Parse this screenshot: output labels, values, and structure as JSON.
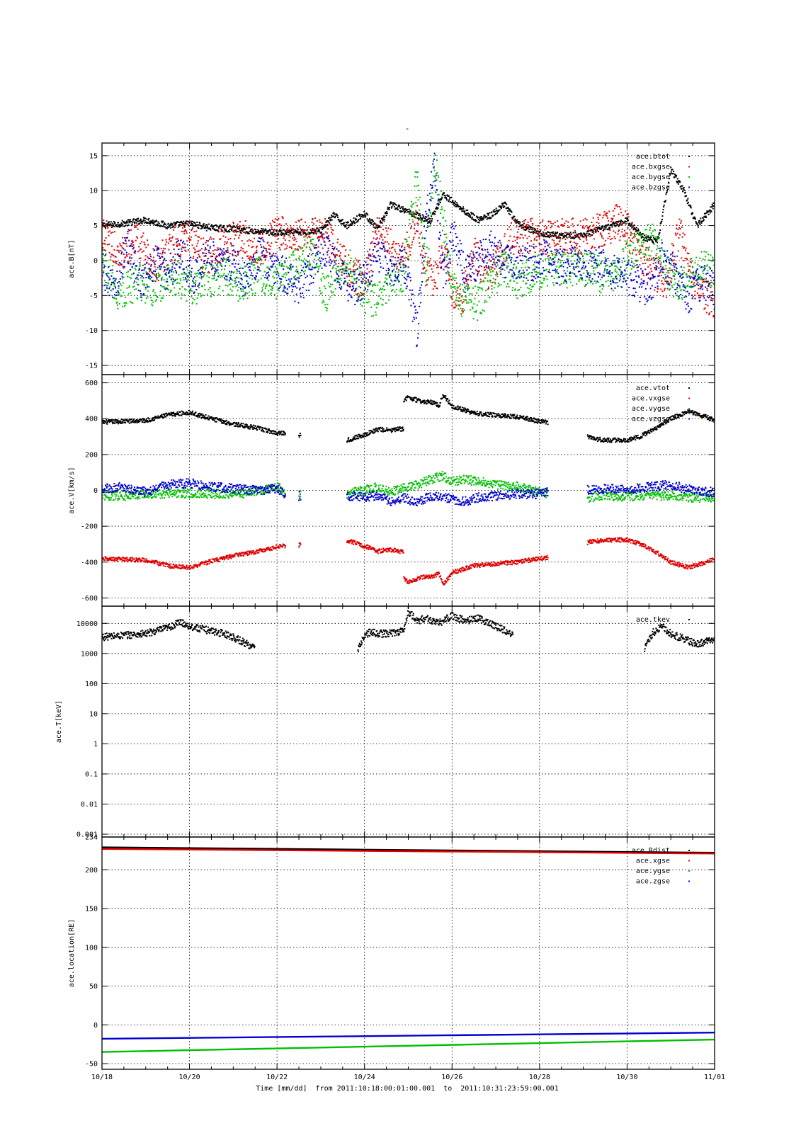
{
  "figure": {
    "title": "-",
    "xlabel": "Time [mm/dd]  from 2011:10:18:00:01:00.001  to  2011:10:31:23:59:00.001",
    "x_ticks": [
      "10/18",
      "10/20",
      "10/22",
      "10/24",
      "10/26",
      "10/28",
      "10/30",
      "11/01"
    ]
  },
  "chart_data": [
    {
      "type": "scatter",
      "ylabel": "ace.B[nT]",
      "xlim": [
        0,
        14
      ],
      "ylim": [
        -15.5,
        16
      ],
      "yscale": "linear",
      "y_ticks": [
        15,
        10,
        5,
        0,
        -5,
        -10,
        -15
      ],
      "y_tick_labels": [
        "15",
        "10",
        "5",
        "0",
        "-5",
        "-10",
        "-15"
      ],
      "grid": true,
      "legend_position": "top-right",
      "series": [
        {
          "name": "ace.btot",
          "color": "#000000",
          "x": [
            0,
            0.5,
            1,
            1.5,
            2,
            2.5,
            3,
            3.5,
            4,
            4.5,
            5,
            5.3,
            5.6,
            6,
            6.3,
            6.6,
            6.9,
            7.2,
            7.5,
            7.8,
            8,
            8.3,
            8.6,
            8.9,
            9.2,
            9.5,
            10,
            10.5,
            11,
            11.5,
            12,
            12.2,
            12.4,
            12.7,
            13,
            13.3,
            13.6,
            14
          ],
          "y": [
            5,
            5.3,
            5.8,
            5,
            5.3,
            4.7,
            4.5,
            4.2,
            4,
            4,
            4.3,
            6.5,
            5,
            6.7,
            4.5,
            8,
            7.2,
            6.5,
            5.6,
            9.5,
            8.5,
            7,
            5.8,
            6.5,
            8,
            5.3,
            3.8,
            3.6,
            3.6,
            4.7,
            5.7,
            4.5,
            3.2,
            2.8,
            13,
            10,
            5,
            8
          ]
        },
        {
          "name": "ace.bxgse",
          "color": "#e00000",
          "x": [
            0,
            0.4,
            0.8,
            1.2,
            1.6,
            2,
            2.4,
            2.8,
            3.2,
            3.6,
            4,
            4.4,
            4.8,
            5.1,
            5.4,
            5.7,
            6,
            6.3,
            6.6,
            6.9,
            7.2,
            7.4,
            7.6,
            7.8,
            8,
            8.2,
            8.5,
            8.8,
            9.1,
            9.4,
            9.8,
            10.2,
            10.6,
            11,
            11.4,
            11.8,
            12,
            12.3,
            12.6,
            12.9,
            13.2,
            13.5,
            13.8,
            14
          ],
          "y": [
            4,
            1,
            3,
            -1,
            2,
            3,
            0.5,
            2.5,
            3.5,
            1.5,
            3.8,
            3.6,
            3.5,
            3.8,
            1,
            -2,
            -3,
            4.5,
            2,
            0,
            6,
            -1,
            -3,
            2,
            -4,
            -6,
            1,
            -2,
            0.5,
            3.2,
            3.5,
            3.2,
            3.6,
            3.3,
            4.5,
            5.5,
            4.5,
            0,
            -1.5,
            -3,
            4,
            -3,
            -5,
            -6
          ]
        },
        {
          "name": "ace.bygse",
          "color": "#00c000",
          "x": [
            0,
            0.4,
            0.8,
            1.2,
            1.6,
            2,
            2.4,
            2.8,
            3.2,
            3.6,
            4,
            4.4,
            4.8,
            5.1,
            5.4,
            5.7,
            6,
            6.3,
            6.6,
            6.9,
            7.2,
            7.4,
            7.6,
            7.8,
            8,
            8.3,
            8.6,
            8.9,
            9.2,
            9.5,
            9.8,
            10.2,
            10.6,
            11,
            11.4,
            11.8,
            12,
            12.3,
            12.6,
            12.9,
            13.2,
            13.5,
            13.8,
            14
          ],
          "y": [
            0,
            -5,
            -3,
            -4,
            -2,
            -4,
            -3,
            -2,
            -3.5,
            -2,
            -3,
            -1,
            2,
            -5,
            -2,
            -1,
            -5,
            -6,
            -3,
            -2,
            12,
            -2,
            14,
            6,
            -4,
            -6,
            -6,
            -3,
            -1,
            -3,
            -2,
            -1,
            -1.5,
            -1,
            -2,
            -2.5,
            1,
            2,
            3,
            -1,
            -4,
            -2,
            -1,
            -2
          ]
        },
        {
          "name": "ace.bzgse",
          "color": "#0000d0",
          "x": [
            0,
            0.3,
            0.6,
            0.9,
            1.2,
            1.5,
            1.8,
            2.1,
            2.4,
            2.7,
            3,
            3.3,
            3.6,
            3.9,
            4.2,
            4.5,
            4.8,
            5.1,
            5.4,
            5.7,
            6,
            6.3,
            6.6,
            6.9,
            7.2,
            7.4,
            7.6,
            7.8,
            8,
            8.3,
            8.6,
            8.9,
            9.2,
            9.5,
            9.8,
            10.1,
            10.4,
            10.7,
            11,
            11.3,
            11.6,
            11.9,
            12.2,
            12.5,
            12.8,
            13.1,
            13.4,
            13.7,
            14
          ],
          "y": [
            -1,
            -4,
            2,
            -3,
            0,
            -2,
            1,
            -3,
            2,
            -1,
            0,
            -3,
            1,
            -1,
            -2,
            -4,
            -1,
            2,
            -1,
            -4,
            -3,
            1,
            -2,
            0,
            -10,
            5,
            14,
            -3,
            4,
            -2,
            0,
            2,
            -0.5,
            0,
            -0.5,
            0.5,
            -1,
            -0.5,
            -1,
            -0.5,
            -1.5,
            -2,
            -3,
            -4,
            0,
            -2,
            -5,
            -3,
            -4
          ]
        }
      ]
    },
    {
      "type": "scatter",
      "ylabel": "ace.V[km/s]",
      "xlim": [
        0,
        14
      ],
      "ylim": [
        -630,
        630
      ],
      "yscale": "linear",
      "y_ticks": [
        600,
        400,
        200,
        0,
        -200,
        -400,
        -600
      ],
      "y_tick_labels": [
        "600",
        "400",
        "200",
        "0",
        "-200",
        "-400",
        "-600"
      ],
      "grid": true,
      "legend_position": "top-right",
      "series": [
        {
          "name": "ace.vtot",
          "color": "#000000",
          "x": [
            0,
            0.5,
            1,
            1.5,
            2,
            2.5,
            3,
            3.5,
            4,
            4.2,
            null,
            4.5,
            4.55,
            null,
            5.6,
            6,
            6.3,
            6.6,
            6.9,
            null,
            6.9,
            7,
            7.3,
            7.6,
            7.7,
            7.8,
            8,
            8.5,
            9,
            9.5,
            10,
            10.2,
            null,
            11.1,
            11.2,
            11.5,
            12,
            12.3,
            12.6,
            13,
            13.4,
            13.8,
            14
          ],
          "y": [
            380,
            385,
            390,
            420,
            435,
            400,
            370,
            350,
            320,
            320,
            null,
            310,
            305,
            null,
            280,
            310,
            340,
            335,
            345,
            null,
            500,
            520,
            495,
            490,
            470,
            535,
            470,
            430,
            420,
            410,
            385,
            380,
            null,
            300,
            290,
            280,
            280,
            300,
            340,
            400,
            440,
            410,
            390
          ]
        },
        {
          "name": "ace.vxgse",
          "color": "#e00000",
          "x": [
            0,
            0.5,
            1,
            1.5,
            2,
            2.5,
            3,
            3.5,
            4,
            4.2,
            null,
            4.5,
            4.55,
            null,
            5.6,
            6,
            6.3,
            6.6,
            6.9,
            null,
            6.9,
            7,
            7.3,
            7.6,
            7.7,
            7.8,
            8,
            8.5,
            9,
            9.5,
            10,
            10.2,
            null,
            11.1,
            11.2,
            11.5,
            12,
            12.3,
            12.6,
            13,
            13.4,
            13.8,
            14
          ],
          "y": [
            -380,
            -385,
            -390,
            -420,
            -430,
            -395,
            -365,
            -345,
            -315,
            -310,
            null,
            -305,
            -300,
            null,
            -280,
            -310,
            -340,
            -330,
            -345,
            null,
            -490,
            -510,
            -485,
            -480,
            -460,
            -530,
            -460,
            -420,
            -410,
            -400,
            -380,
            -375,
            null,
            -290,
            -285,
            -280,
            -275,
            -300,
            -335,
            -400,
            -430,
            -400,
            -380
          ]
        },
        {
          "name": "ace.vygse",
          "color": "#00c000",
          "x": [
            0,
            0.5,
            1,
            1.5,
            2,
            2.5,
            3,
            3.5,
            4,
            4.2,
            null,
            4.5,
            4.55,
            null,
            5.6,
            6,
            6.3,
            6.6,
            6.9,
            7.2,
            7.5,
            7.8,
            8,
            8.3,
            8.6,
            9,
            9.5,
            10,
            10.2,
            null,
            11.1,
            11.5,
            12,
            12.5,
            13,
            13.5,
            14
          ],
          "y": [
            -30,
            -30,
            -20,
            -20,
            -15,
            -20,
            -20,
            -10,
            20,
            -10,
            null,
            -20,
            -20,
            null,
            -20,
            0,
            20,
            -10,
            10,
            30,
            60,
            80,
            50,
            60,
            50,
            30,
            20,
            -10,
            -20,
            null,
            -40,
            -30,
            -35,
            -30,
            -30,
            -40,
            -40
          ]
        },
        {
          "name": "ace.vzgse",
          "color": "#0000d0",
          "x": [
            0,
            0.5,
            1,
            1.5,
            2,
            2.5,
            3,
            3.5,
            4,
            4.2,
            null,
            4.5,
            4.55,
            null,
            5.6,
            6,
            6.3,
            6.6,
            6.9,
            7.2,
            7.5,
            7.8,
            8,
            8.3,
            8.6,
            9,
            9.5,
            10,
            10.2,
            null,
            11.1,
            11.5,
            12,
            12.5,
            13,
            13.5,
            14
          ],
          "y": [
            10,
            20,
            -10,
            30,
            40,
            20,
            10,
            0,
            10,
            -30,
            null,
            -30,
            -30,
            null,
            -30,
            -40,
            -30,
            -60,
            -40,
            -70,
            -30,
            -40,
            -50,
            -60,
            -40,
            -30,
            -20,
            -20,
            -10,
            null,
            0,
            10,
            0,
            20,
            30,
            0,
            -10
          ]
        }
      ]
    },
    {
      "type": "scatter",
      "ylabel": "ace.T[keV]",
      "xlim": [
        0,
        14
      ],
      "ylim": [
        0.001,
        30000
      ],
      "yscale": "log",
      "y_ticks": [
        10000,
        1000,
        100,
        10,
        1,
        0.1,
        0.01,
        0.001
      ],
      "y_tick_labels": [
        "10000",
        "1000",
        "100",
        "10",
        "1",
        "0.1",
        "0.01",
        "0.001"
      ],
      "grid": true,
      "legend_position": "top-right",
      "series": [
        {
          "name": "ace.tkev",
          "color": "#000000",
          "x": [
            0,
            0.5,
            1,
            1.5,
            1.8,
            2,
            2.4,
            2.8,
            3,
            3.2,
            3.4,
            3.5,
            null,
            5.85,
            5.95,
            6.1,
            6.4,
            6.7,
            6.9,
            7,
            7.2,
            7.4,
            7.7,
            8,
            8.3,
            8.6,
            9,
            9.2,
            9.4,
            null,
            12.4,
            12.6,
            12.8,
            13,
            13.3,
            13.6,
            14
          ],
          "y": [
            3500,
            4000,
            4500,
            7000,
            11000,
            8000,
            6000,
            4500,
            3500,
            2500,
            1800,
            1500,
            null,
            1200,
            3000,
            5000,
            4500,
            5000,
            6000,
            25000,
            12000,
            15000,
            10000,
            18000,
            12000,
            15000,
            8000,
            6000,
            4000,
            null,
            1500,
            5000,
            8000,
            4500,
            3000,
            2000,
            3000
          ]
        }
      ]
    },
    {
      "type": "line",
      "ylabel": "ace.location[RE]",
      "xlim": [
        0,
        14
      ],
      "ylim": [
        -50,
        235
      ],
      "yscale": "linear",
      "y_ticks": [
        234,
        200,
        150,
        100,
        50,
        0,
        -50
      ],
      "y_tick_labels": [
        "234",
        "200",
        "150",
        "100",
        "50",
        "0",
        "-50"
      ],
      "grid": true,
      "legend_position": "top-right",
      "series": [
        {
          "name": "ace.Rdist",
          "color": "#000000",
          "x": [
            0,
            14
          ],
          "y": [
            229,
            222
          ]
        },
        {
          "name": "ace.xgse",
          "color": "#e00000",
          "x": [
            0,
            14
          ],
          "y": [
            227,
            221
          ]
        },
        {
          "name": "ace.ygse",
          "color": "#00c000",
          "x": [
            0,
            14
          ],
          "y": [
            -35,
            -19
          ]
        },
        {
          "name": "ace.zgse",
          "color": "#0000d0",
          "x": [
            0,
            14
          ],
          "y": [
            -18,
            -10
          ]
        }
      ]
    }
  ]
}
